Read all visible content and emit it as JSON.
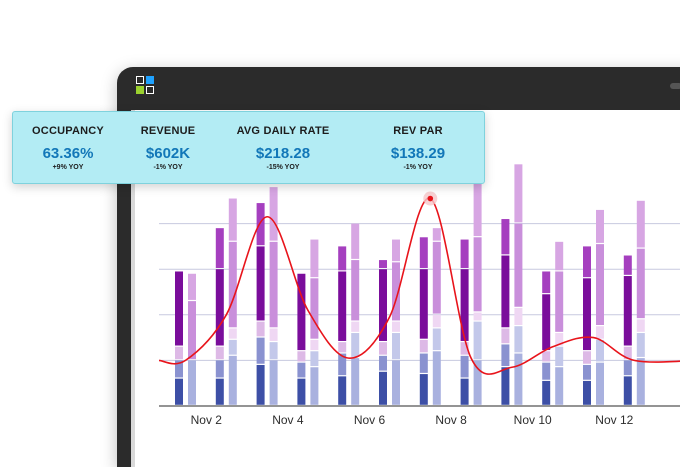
{
  "stats": [
    {
      "label": "OCCUPANCY",
      "value": "63.36%",
      "yoy": "+9% YOY"
    },
    {
      "label": "REVENUE",
      "value": "$602K",
      "yoy": "-1% YOY"
    },
    {
      "label": "AVG DAILY RATE",
      "value": "$218.28",
      "yoy": "-15% YOY"
    },
    {
      "label": "REV PAR",
      "value": "$138.29",
      "yoy": "-1% YOY"
    }
  ],
  "colors": {
    "accent": "#1277b8",
    "panel": "#b3ecf4",
    "line": "#e8141b",
    "logo": [
      "#ffffff",
      "#1fa2ff",
      "#9bd12f",
      "#ffffff"
    ]
  },
  "chart_data": {
    "type": "bar",
    "title": "",
    "xlabel": "",
    "ylabel": "",
    "x_tick_labels": [
      "Nov 2",
      "Nov 4",
      "Nov 6",
      "Nov 8",
      "Nov 10",
      "Nov 12"
    ],
    "ylim": [
      0,
      100
    ],
    "grid": true,
    "segment_order": [
      "navy",
      "light_blue",
      "light_pink",
      "dark_purple",
      "light_purple"
    ],
    "pairs": [
      {
        "dark": [
          12,
          8,
          6,
          33,
          0
        ],
        "light": [
          20,
          0,
          0,
          26,
          12
        ]
      },
      {
        "dark": [
          12,
          8,
          6,
          34,
          18
        ],
        "light": [
          22,
          7,
          5,
          38,
          19
        ]
      },
      {
        "dark": [
          18,
          12,
          7,
          33,
          19
        ],
        "light": [
          20,
          8,
          6,
          38,
          24
        ]
      },
      {
        "dark": [
          12,
          7,
          5,
          34,
          0
        ],
        "light": [
          17,
          7,
          5,
          27,
          17
        ]
      },
      {
        "dark": [
          13,
          10,
          5,
          31,
          11
        ],
        "light": [
          21,
          11,
          5,
          27,
          16
        ]
      },
      {
        "dark": [
          15,
          7,
          6,
          32,
          4
        ],
        "light": [
          20,
          12,
          5,
          26,
          10
        ]
      },
      {
        "dark": [
          14,
          9,
          6,
          31,
          14
        ],
        "light": [
          24,
          10,
          6,
          32,
          6
        ]
      },
      {
        "dark": [
          12,
          10,
          6,
          32,
          13
        ],
        "light": [
          20,
          17,
          4,
          33,
          25
        ]
      },
      {
        "dark": [
          17,
          10,
          7,
          32,
          16
        ],
        "light": [
          23,
          12,
          8,
          37,
          26
        ]
      },
      {
        "dark": [
          11,
          8,
          5,
          25,
          10
        ],
        "light": [
          17,
          9,
          6,
          27,
          13
        ]
      },
      {
        "dark": [
          11,
          7,
          6,
          32,
          14
        ],
        "light": [
          19,
          10,
          6,
          36,
          15
        ]
      },
      {
        "dark": [
          13,
          7,
          6,
          31,
          9
        ],
        "light": [
          21,
          11,
          6,
          31,
          21
        ]
      }
    ],
    "line_series": [
      20,
      40,
      83,
      42,
      21,
      39,
      91,
      21,
      17,
      26,
      30,
      20
    ]
  }
}
